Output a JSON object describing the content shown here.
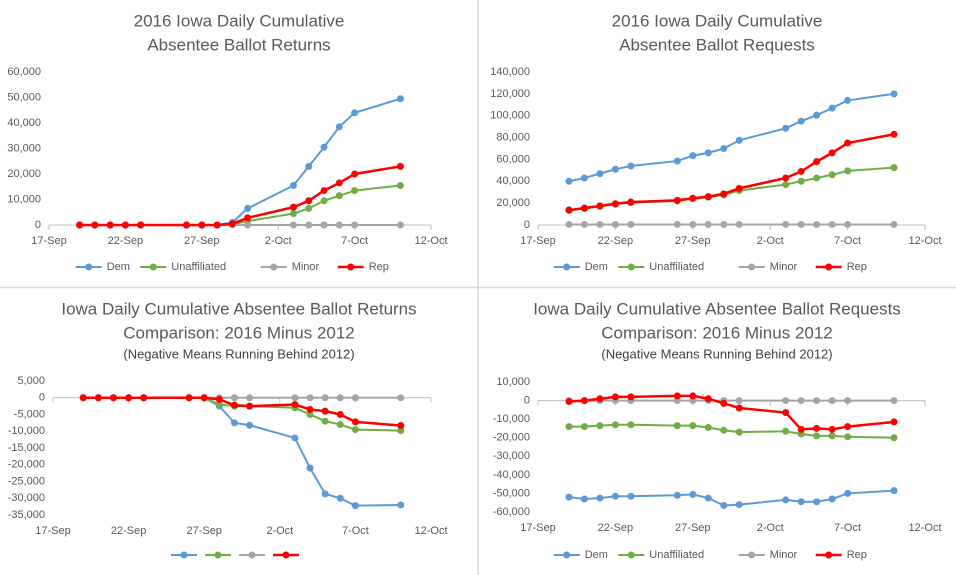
{
  "chart_data": [
    {
      "type": "line",
      "title": [
        "2016 Iowa Daily Cumulative",
        "Absentee Ballot Returns"
      ],
      "x": [
        "09-19",
        "09-20",
        "09-21",
        "09-22",
        "09-23",
        "09-26",
        "09-27",
        "09-28",
        "09-29",
        "09-30",
        "10-03",
        "10-04",
        "10-05",
        "10-06",
        "10-07",
        "10-10"
      ],
      "xlim": [
        "09-17",
        "10-12"
      ],
      "xticks": [
        {
          "value": "09-17",
          "label": "17-Sep"
        },
        {
          "value": "09-22",
          "label": "22-Sep"
        },
        {
          "value": "09-27",
          "label": "27-Sep"
        },
        {
          "value": "10-02",
          "label": "2-Oct"
        },
        {
          "value": "10-07",
          "label": "7-Oct"
        },
        {
          "value": "10-12",
          "label": "12-Oct"
        }
      ],
      "ylim": [
        0,
        60000
      ],
      "yticks": [
        0,
        {
          "value": 10000,
          "label": "10,000"
        },
        {
          "value": 20000,
          "label": "20,000"
        },
        {
          "value": 30000,
          "label": "30,000"
        },
        {
          "value": 40000,
          "label": "40,000"
        },
        {
          "value": 50000,
          "label": "50,000"
        },
        {
          "value": 60000,
          "label": "60,000"
        }
      ],
      "legend": "bottom",
      "series": [
        {
          "name": "Dem",
          "color": "#5b9bd5",
          "values": [
            0,
            0,
            0,
            0,
            0,
            0,
            0,
            0,
            1000,
            6500,
            15500,
            23000,
            30500,
            38500,
            44000,
            49500
          ]
        },
        {
          "name": "Unaffiliated",
          "color": "#70ad47",
          "values": [
            0,
            0,
            0,
            0,
            0,
            0,
            0,
            0,
            300,
            1500,
            4500,
            6500,
            9500,
            11500,
            13500,
            15500
          ]
        },
        {
          "name": "Minor",
          "color": "#a5a5a5",
          "values": [
            0,
            0,
            0,
            0,
            0,
            0,
            0,
            0,
            0,
            0,
            0,
            0,
            0,
            0,
            0,
            0
          ]
        },
        {
          "name": "Rep",
          "color": "#ff0000",
          "values": [
            0,
            0,
            0,
            0,
            0,
            0,
            0,
            0,
            500,
            2800,
            7000,
            9500,
            13500,
            16500,
            20000,
            23000
          ]
        }
      ]
    },
    {
      "type": "line",
      "title": [
        "2016 Iowa Daily Cumulative",
        "Absentee Ballot Requests"
      ],
      "x": [
        "09-19",
        "09-20",
        "09-21",
        "09-22",
        "09-23",
        "09-26",
        "09-27",
        "09-28",
        "09-29",
        "09-30",
        "10-03",
        "10-04",
        "10-05",
        "10-06",
        "10-07",
        "10-10"
      ],
      "xlim": [
        "09-17",
        "10-12"
      ],
      "xticks": [
        {
          "value": "09-17",
          "label": "17-Sep"
        },
        {
          "value": "09-22",
          "label": "22-Sep"
        },
        {
          "value": "09-27",
          "label": "27-Sep"
        },
        {
          "value": "10-02",
          "label": "2-Oct"
        },
        {
          "value": "10-07",
          "label": "7-Oct"
        },
        {
          "value": "10-12",
          "label": "12-Oct"
        }
      ],
      "ylim": [
        0,
        140000
      ],
      "yticks": [
        0,
        {
          "value": 20000,
          "label": "20,000"
        },
        {
          "value": 40000,
          "label": "40,000"
        },
        {
          "value": 60000,
          "label": "60,000"
        },
        {
          "value": 80000,
          "label": "80,000"
        },
        {
          "value": 100000,
          "label": "100,000"
        },
        {
          "value": 120000,
          "label": "120,000"
        },
        {
          "value": 140000,
          "label": "140,000"
        }
      ],
      "legend": "bottom",
      "series": [
        {
          "name": "Dem",
          "color": "#5b9bd5",
          "values": [
            40000,
            43000,
            47000,
            51000,
            54000,
            58500,
            63500,
            66000,
            70000,
            77500,
            88500,
            95000,
            100500,
            107000,
            114000,
            120000
          ]
        },
        {
          "name": "Unaffiliated",
          "color": "#70ad47",
          "values": [
            14000,
            15000,
            17000,
            19000,
            20500,
            22000,
            24000,
            25500,
            27500,
            31500,
            37000,
            40000,
            43000,
            46000,
            49500,
            52500
          ]
        },
        {
          "name": "Minor",
          "color": "#a5a5a5",
          "values": [
            500,
            500,
            500,
            500,
            500,
            500,
            500,
            500,
            500,
            500,
            500,
            500,
            500,
            500,
            500,
            500
          ]
        },
        {
          "name": "Rep",
          "color": "#ff0000",
          "values": [
            13500,
            15500,
            17500,
            19500,
            21000,
            22500,
            24500,
            26000,
            28500,
            33500,
            43000,
            49000,
            58000,
            66000,
            75000,
            83000
          ]
        }
      ]
    },
    {
      "type": "line",
      "title": [
        "Iowa Daily Cumulative Absentee Ballot Returns",
        "Comparison: 2016 Minus 2012"
      ],
      "subtitle": "(Negative Means Running Behind 2012)",
      "x": [
        "09-19",
        "09-20",
        "09-21",
        "09-22",
        "09-23",
        "09-26",
        "09-27",
        "09-28",
        "09-29",
        "09-30",
        "10-03",
        "10-04",
        "10-05",
        "10-06",
        "10-07",
        "10-10"
      ],
      "xlim": [
        "09-17",
        "10-12"
      ],
      "xticks": [
        {
          "value": "09-17",
          "label": "17-Sep"
        },
        {
          "value": "09-22",
          "label": "22-Sep"
        },
        {
          "value": "09-27",
          "label": "27-Sep"
        },
        {
          "value": "10-02",
          "label": "2-Oct"
        },
        {
          "value": "10-07",
          "label": "7-Oct"
        },
        {
          "value": "10-12",
          "label": "12-Oct"
        }
      ],
      "ylim": [
        -35000,
        5000
      ],
      "yticks": [
        {
          "value": -35000,
          "label": "-35,000"
        },
        {
          "value": -30000,
          "label": "-30,000"
        },
        {
          "value": -25000,
          "label": "-25,000"
        },
        {
          "value": -20000,
          "label": "-20,000"
        },
        {
          "value": -15000,
          "label": "-15,000"
        },
        {
          "value": -10000,
          "label": "-10,000"
        },
        {
          "value": -5000,
          "label": "-5,000"
        },
        0,
        {
          "value": 5000,
          "label": "5,000"
        }
      ],
      "legend": "bottom",
      "series": [
        {
          "color": "#5b9bd5",
          "values": [
            0,
            0,
            0,
            0,
            0,
            0,
            0,
            -2500,
            -7500,
            -8200,
            -12000,
            -21000,
            -28700,
            -30000,
            -32200,
            -32000
          ]
        },
        {
          "color": "#70ad47",
          "values": [
            0,
            0,
            0,
            0,
            0,
            0,
            0,
            -2000,
            -2500,
            -2500,
            -3000,
            -5000,
            -7000,
            -8000,
            -9500,
            -9800
          ]
        },
        {
          "color": "#a5a5a5",
          "values": [
            0,
            0,
            0,
            0,
            0,
            0,
            0,
            0,
            0,
            0,
            0,
            0,
            0,
            0,
            0,
            0
          ]
        },
        {
          "color": "#ff0000",
          "values": [
            0,
            0,
            0,
            0,
            0,
            0,
            0,
            -500,
            -2200,
            -2500,
            -2000,
            -3500,
            -4000,
            -5000,
            -7200,
            -8300
          ]
        }
      ]
    },
    {
      "type": "line",
      "title": [
        "Iowa Daily Cumulative Absentee Ballot Requests",
        "Comparison: 2016 Minus 2012"
      ],
      "subtitle": "(Negative Means Running Behind 2012)",
      "x": [
        "09-19",
        "09-20",
        "09-21",
        "09-22",
        "09-23",
        "09-26",
        "09-27",
        "09-28",
        "09-29",
        "09-30",
        "10-03",
        "10-04",
        "10-05",
        "10-06",
        "10-07",
        "10-10"
      ],
      "xlim": [
        "09-17",
        "10-12"
      ],
      "xticks": [
        {
          "value": "09-17",
          "label": "17-Sep"
        },
        {
          "value": "09-22",
          "label": "22-Sep"
        },
        {
          "value": "09-27",
          "label": "27-Sep"
        },
        {
          "value": "10-02",
          "label": "2-Oct"
        },
        {
          "value": "10-07",
          "label": "7-Oct"
        },
        {
          "value": "10-12",
          "label": "12-Oct"
        }
      ],
      "ylim": [
        -60000,
        10000
      ],
      "yticks": [
        {
          "value": -60000,
          "label": "-60,000"
        },
        {
          "value": -50000,
          "label": "-50,000"
        },
        {
          "value": -40000,
          "label": "-40,000"
        },
        {
          "value": -30000,
          "label": "-30,000"
        },
        {
          "value": -20000,
          "label": "-20,000"
        },
        {
          "value": -10000,
          "label": "-10,000"
        },
        0,
        {
          "value": 10000,
          "label": "10,000"
        }
      ],
      "legend": "bottom",
      "series": [
        {
          "name": "Dem",
          "color": "#5b9bd5",
          "values": [
            -52000,
            -53000,
            -52500,
            -51500,
            -51500,
            -51000,
            -50500,
            -52500,
            -56500,
            -56000,
            -53500,
            -54500,
            -54500,
            -53000,
            -50000,
            -48500
          ]
        },
        {
          "name": "Unaffiliated",
          "color": "#70ad47",
          "values": [
            -14000,
            -14000,
            -13500,
            -13000,
            -13000,
            -13500,
            -13500,
            -14500,
            -16000,
            -17000,
            -16500,
            -18000,
            -19000,
            -19000,
            -19500,
            -20000
          ]
        },
        {
          "name": "Minor",
          "color": "#a5a5a5",
          "values": [
            0,
            0,
            0,
            0,
            0,
            0,
            0,
            0,
            0,
            0,
            0,
            0,
            0,
            0,
            0,
            0
          ]
        },
        {
          "name": "Rep",
          "color": "#ff0000",
          "values": [
            -500,
            0,
            1000,
            2000,
            2000,
            2500,
            2500,
            1000,
            -1500,
            -4000,
            -6500,
            -15500,
            -15000,
            -15500,
            -14000,
            -11500
          ]
        }
      ]
    }
  ]
}
